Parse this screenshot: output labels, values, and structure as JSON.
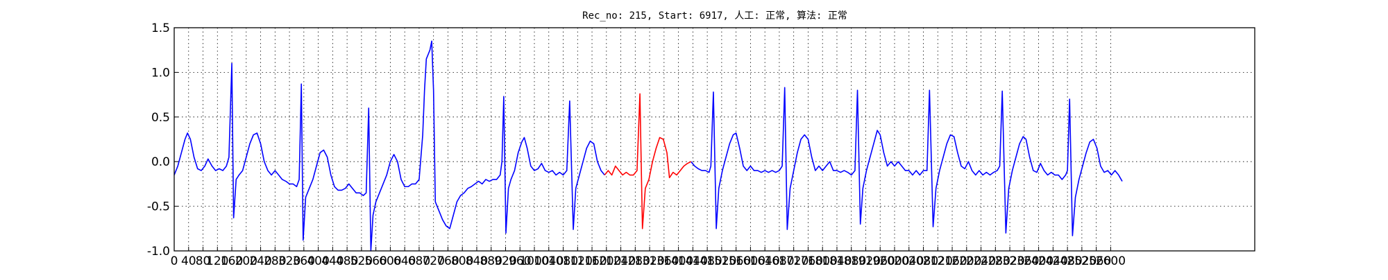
{
  "chart_data": {
    "type": "line",
    "title": "Rec_no: 215, Start: 6917, 人工: 正常, 算法: 正常",
    "xlim": [
      0,
      3000
    ],
    "xticks": [
      0,
      40,
      80,
      120,
      160,
      200,
      240,
      280,
      320,
      360,
      400,
      440,
      480,
      520,
      560,
      600,
      640,
      680,
      720,
      760,
      800,
      840,
      880,
      920,
      960,
      1000,
      1040,
      1080,
      1120,
      1160,
      1200,
      1240,
      1280,
      1320,
      1360,
      1400,
      1440,
      1480,
      1520,
      1560,
      1600,
      1640,
      1680,
      1720,
      1760,
      1800,
      1840,
      1880,
      1920,
      1960,
      2000,
      2040,
      2080,
      2120,
      2160,
      2200,
      2240,
      2280,
      2320,
      2360,
      2400,
      2440,
      2480,
      2520,
      2560,
      2600
    ],
    "ylim": [
      -1.0,
      1.5
    ],
    "yticks": [
      {
        "value": -1.0,
        "label": "-1.0"
      },
      -0.5,
      {
        "value": 0.0,
        "label": "0.0"
      },
      0.5,
      {
        "value": 1.0,
        "label": "1.0"
      },
      1.5
    ],
    "grid": true,
    "series": [
      {
        "color": "#0000ff",
        "x": [
          0,
          10,
          20,
          30,
          37,
          45,
          55,
          65,
          75,
          85,
          94,
          105,
          115,
          125,
          135,
          145,
          152,
          160,
          165,
          172,
          180,
          190,
          200,
          210,
          220,
          230,
          240,
          250,
          260,
          270,
          280,
          290,
          300,
          310,
          320,
          330,
          340,
          347,
          353,
          358,
          365,
          375,
          385,
          395,
          405,
          415,
          425,
          435,
          445,
          455,
          465,
          475,
          485,
          495,
          505,
          515,
          525,
          533,
          540,
          546,
          552,
          560,
          570,
          580,
          590,
          600,
          610,
          620,
          630,
          640,
          650,
          660,
          670,
          680,
          690,
          695,
          700,
          705,
          710,
          715,
          720,
          725,
          735,
          745,
          755,
          765,
          775,
          785,
          795,
          805,
          815,
          825,
          835,
          845,
          855,
          865,
          875,
          885,
          895,
          905,
          910,
          915,
          921,
          928,
          935,
          945,
          955,
          965,
          972,
          980,
          990,
          1000,
          1010,
          1020,
          1030,
          1040,
          1050,
          1060,
          1070,
          1080,
          1090,
          1098,
          1108,
          1115,
          1125,
          1135,
          1145,
          1155,
          1165,
          1175,
          1185,
          1195,
          null,
          1435,
          1445,
          1455,
          1465,
          1475,
          1485,
          1490,
          1497,
          1505,
          1512,
          1522,
          1532,
          1542,
          1552,
          1560,
          1570,
          1580,
          1590,
          1600,
          1610,
          1620,
          1630,
          1640,
          1650,
          1660,
          1670,
          1680,
          1688,
          1695,
          1702,
          1710,
          1720,
          1730,
          1740,
          1750,
          1760,
          1770,
          1780,
          1790,
          1800,
          1810,
          1820,
          1830,
          1840,
          1850,
          1860,
          1870,
          1880,
          1890,
          1897,
          1905,
          1912,
          1922,
          1932,
          1942,
          1952,
          1960,
          1970,
          1980,
          1990,
          2000,
          2010,
          2020,
          2030,
          2040,
          2050,
          2060,
          2070,
          2080,
          2090,
          2097,
          2107,
          2115,
          2125,
          2135,
          2145,
          2155,
          2165,
          2175,
          2185,
          2195,
          2205,
          2215,
          2225,
          2235,
          2245,
          2255,
          2265,
          2275,
          2285,
          2292,
          2299,
          2309,
          2317,
          2327,
          2337,
          2347,
          2357,
          2365,
          2375,
          2385,
          2395,
          2405,
          2415,
          2425,
          2435,
          2445,
          2455,
          2465,
          2475,
          2480,
          2486,
          2494,
          2502,
          2512,
          2522,
          2532,
          2542,
          2552,
          2562,
          2572,
          2582,
          2592,
          2602,
          2612,
          2622,
          2632
        ],
        "values": [
          -0.15,
          -0.05,
          0.1,
          0.25,
          0.32,
          0.25,
          0.05,
          -0.08,
          -0.1,
          -0.05,
          0.03,
          -0.05,
          -0.1,
          -0.08,
          -0.1,
          -0.05,
          0.05,
          1.1,
          -0.63,
          -0.2,
          -0.15,
          -0.1,
          0.05,
          0.2,
          0.3,
          0.32,
          0.2,
          0.0,
          -0.1,
          -0.15,
          -0.1,
          -0.15,
          -0.2,
          -0.22,
          -0.25,
          -0.25,
          -0.28,
          -0.2,
          0.87,
          -0.88,
          -0.4,
          -0.3,
          -0.2,
          -0.05,
          0.1,
          0.13,
          0.05,
          -0.15,
          -0.28,
          -0.32,
          -0.32,
          -0.3,
          -0.25,
          -0.3,
          -0.35,
          -0.35,
          -0.38,
          -0.35,
          0.6,
          -1.0,
          -0.6,
          -0.45,
          -0.35,
          -0.25,
          -0.15,
          0.0,
          0.08,
          0.0,
          -0.2,
          -0.28,
          -0.28,
          -0.25,
          -0.25,
          -0.2,
          0.3,
          0.8,
          1.15,
          1.2,
          1.25,
          1.35,
          0.8,
          -0.45,
          -0.55,
          -0.65,
          -0.72,
          -0.75,
          -0.6,
          -0.45,
          -0.38,
          -0.35,
          -0.3,
          -0.28,
          -0.25,
          -0.22,
          -0.25,
          -0.2,
          -0.22,
          -0.2,
          -0.2,
          -0.15,
          0.0,
          0.73,
          -0.8,
          -0.3,
          -0.2,
          -0.1,
          0.1,
          0.22,
          0.27,
          0.15,
          -0.05,
          -0.1,
          -0.08,
          -0.02,
          -0.1,
          -0.12,
          -0.1,
          -0.15,
          -0.12,
          -0.15,
          -0.1,
          0.68,
          -0.76,
          -0.3,
          -0.15,
          0.0,
          0.15,
          0.23,
          0.2,
          0.0,
          -0.1,
          -0.15,
          null,
          0.0,
          -0.05,
          -0.08,
          -0.1,
          -0.1,
          -0.12,
          -0.05,
          0.78,
          -0.75,
          -0.3,
          -0.1,
          0.05,
          0.2,
          0.3,
          0.32,
          0.15,
          -0.05,
          -0.1,
          -0.05,
          -0.1,
          -0.1,
          -0.12,
          -0.1,
          -0.12,
          -0.1,
          -0.12,
          -0.1,
          -0.05,
          0.83,
          -0.76,
          -0.3,
          -0.1,
          0.1,
          0.25,
          0.3,
          0.25,
          0.05,
          -0.1,
          -0.05,
          -0.1,
          -0.05,
          0.0,
          -0.1,
          -0.1,
          -0.12,
          -0.1,
          -0.12,
          -0.15,
          -0.1,
          0.8,
          -0.7,
          -0.3,
          -0.1,
          0.05,
          0.2,
          0.35,
          0.3,
          0.1,
          -0.05,
          0.0,
          -0.05,
          0.0,
          -0.05,
          -0.1,
          -0.1,
          -0.15,
          -0.1,
          -0.15,
          -0.1,
          -0.1,
          0.8,
          -0.73,
          -0.3,
          -0.1,
          0.05,
          0.2,
          0.3,
          0.28,
          0.1,
          -0.05,
          -0.08,
          0.0,
          -0.1,
          -0.15,
          -0.1,
          -0.15,
          -0.12,
          -0.15,
          -0.12,
          -0.1,
          -0.05,
          0.79,
          -0.8,
          -0.3,
          -0.1,
          0.05,
          0.2,
          0.28,
          0.25,
          0.05,
          -0.1,
          -0.12,
          -0.02,
          -0.1,
          -0.15,
          -0.12,
          -0.15,
          -0.15,
          -0.2,
          -0.15,
          -0.1,
          0.7,
          -0.83,
          -0.4,
          -0.2,
          -0.05,
          0.1,
          0.22,
          0.25,
          0.15,
          -0.05,
          -0.12,
          -0.1,
          -0.15,
          -0.1,
          -0.15,
          -0.22
        ]
      },
      {
        "color": "#ff0000",
        "x": [
          1195,
          1205,
          1215,
          1225,
          1235,
          1245,
          1255,
          1265,
          1275,
          1285,
          1293,
          1300,
          1308,
          1318,
          1328,
          1338,
          1348,
          1358,
          1368,
          1375,
          1385,
          1395,
          1405,
          1415,
          1425,
          1435
        ],
        "values": [
          -0.15,
          -0.1,
          -0.15,
          -0.05,
          -0.1,
          -0.15,
          -0.12,
          -0.15,
          -0.15,
          -0.1,
          0.76,
          -0.75,
          -0.3,
          -0.2,
          0.0,
          0.15,
          0.27,
          0.25,
          0.1,
          -0.18,
          -0.12,
          -0.15,
          -0.1,
          -0.05,
          -0.02,
          0.0
        ]
      }
    ]
  }
}
